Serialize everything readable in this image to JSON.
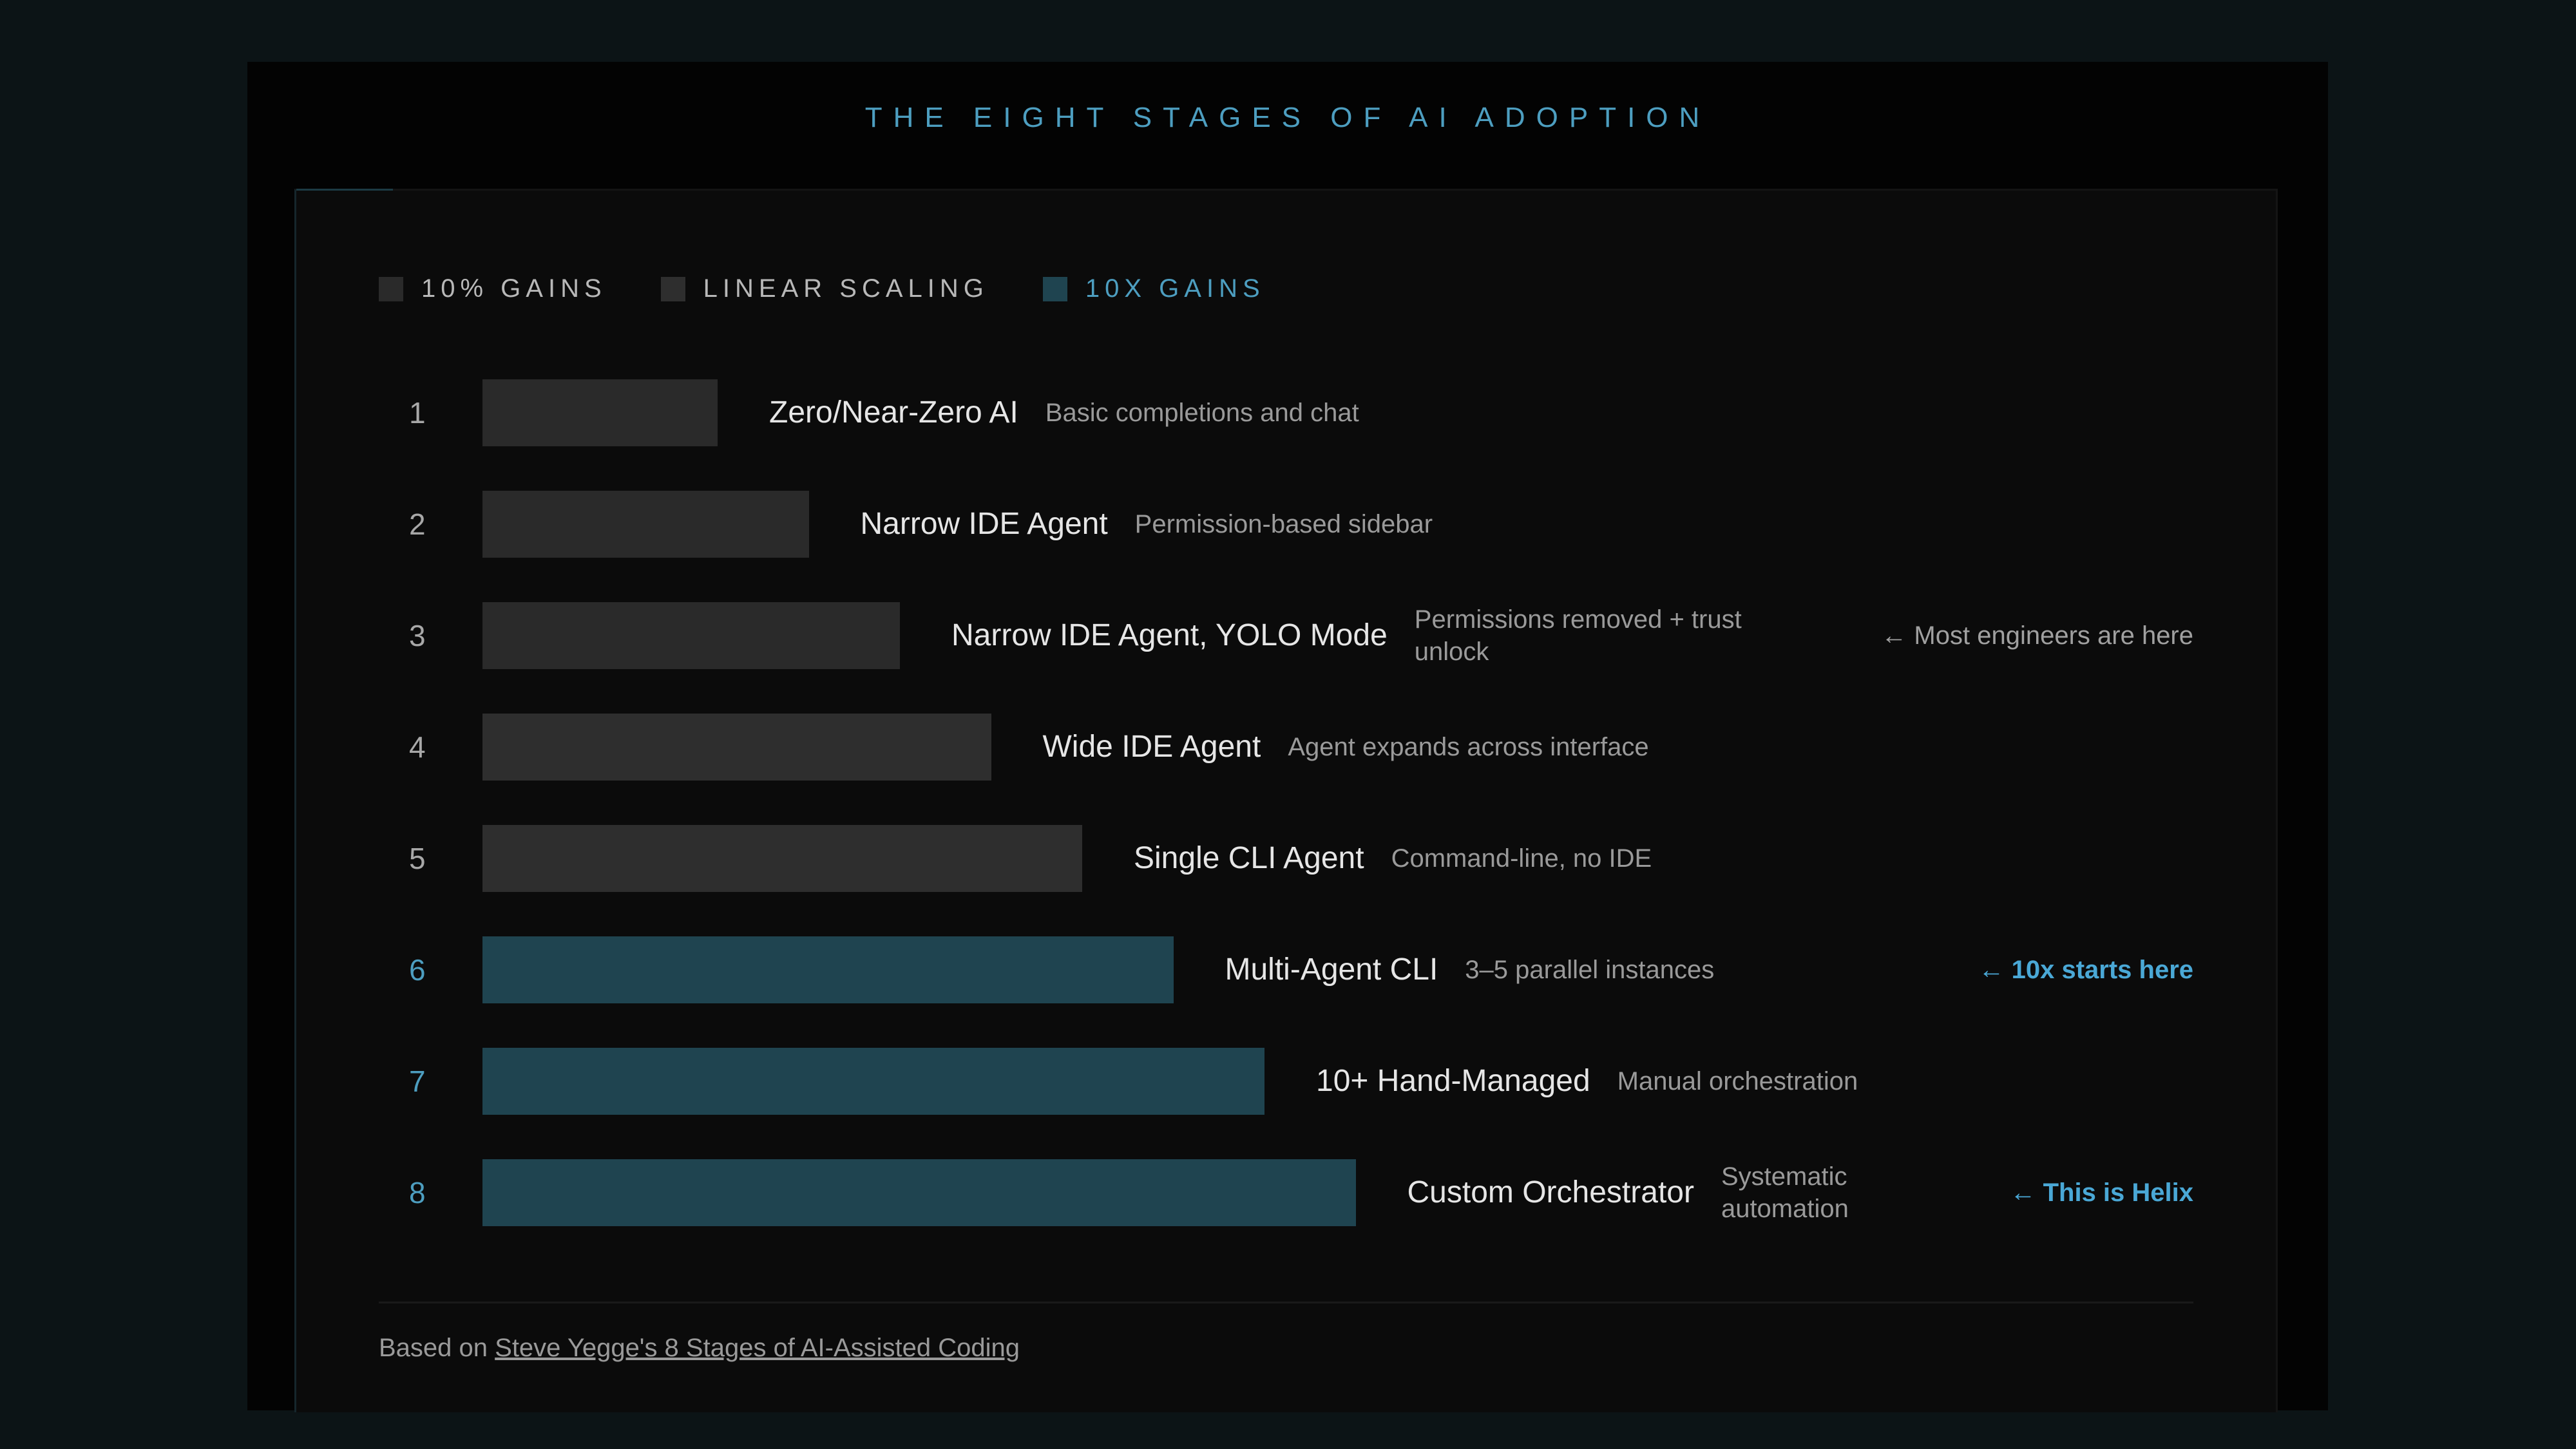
{
  "title": "THE EIGHT STAGES OF AI ADOPTION",
  "legend": [
    {
      "label": "10% GAINS",
      "color": "#2a2a2a",
      "text_color": "#b8b8b8"
    },
    {
      "label": "LINEAR SCALING",
      "color": "#2e2e2e",
      "text_color": "#b8b8b8"
    },
    {
      "label": "10X GAINS",
      "color": "#1f4450",
      "text_color": "#4d9ec0"
    }
  ],
  "chart_data": {
    "type": "bar",
    "orientation": "horizontal",
    "title": "THE EIGHT STAGES OF AI ADOPTION",
    "categories": [
      "1",
      "2",
      "3",
      "4",
      "5",
      "6",
      "7",
      "8"
    ],
    "values": [
      1,
      2,
      3,
      4,
      5,
      6,
      7,
      8
    ],
    "series": [
      {
        "values": [
          1,
          2,
          3,
          4,
          5,
          6,
          7,
          8
        ]
      }
    ],
    "items": [
      {
        "stage": "1",
        "name": "Zero/Near-Zero AI",
        "desc": "Basic completions and chat",
        "note": "",
        "group": "10% GAINS",
        "value": 1
      },
      {
        "stage": "2",
        "name": "Narrow IDE Agent",
        "desc": "Permission-based sidebar",
        "note": "",
        "group": "10% GAINS",
        "value": 2
      },
      {
        "stage": "3",
        "name": "Narrow IDE Agent, YOLO Mode",
        "desc": "Permissions removed + trust unlock",
        "note": "← Most engineers are here",
        "group": "10% GAINS",
        "value": 3
      },
      {
        "stage": "4",
        "name": "Wide IDE Agent",
        "desc": "Agent expands across interface",
        "note": "",
        "group": "LINEAR SCALING",
        "value": 4
      },
      {
        "stage": "5",
        "name": "Single CLI Agent",
        "desc": "Command-line, no IDE",
        "note": "",
        "group": "LINEAR SCALING",
        "value": 5
      },
      {
        "stage": "6",
        "name": "Multi-Agent CLI",
        "desc": "3–5 parallel instances",
        "note": "← 10x starts here",
        "group": "10X GAINS",
        "value": 6
      },
      {
        "stage": "7",
        "name": "10+ Hand-Managed",
        "desc": "Manual orchestration",
        "note": "",
        "group": "10X GAINS",
        "value": 7
      },
      {
        "stage": "8",
        "name": "Custom Orchestrator",
        "desc": "Systematic automation",
        "note": "← This is Helix",
        "group": "10X GAINS",
        "value": 8
      }
    ],
    "xlim": [
      0,
      8
    ],
    "grid": false,
    "legend_position": "top-left",
    "colors": {
      "10% GAINS": "#2a2a2a",
      "LINEAR SCALING": "#2e2e2e",
      "10X GAINS": "#1f4450"
    }
  },
  "footer": {
    "prefix": "Based on ",
    "link_text": "Steve Yegge's 8 Stages of AI-Assisted Coding"
  },
  "colors": {
    "accent": "#4d9ec0",
    "highlight": "#4aa8d6",
    "scribble": "#c0189a"
  }
}
